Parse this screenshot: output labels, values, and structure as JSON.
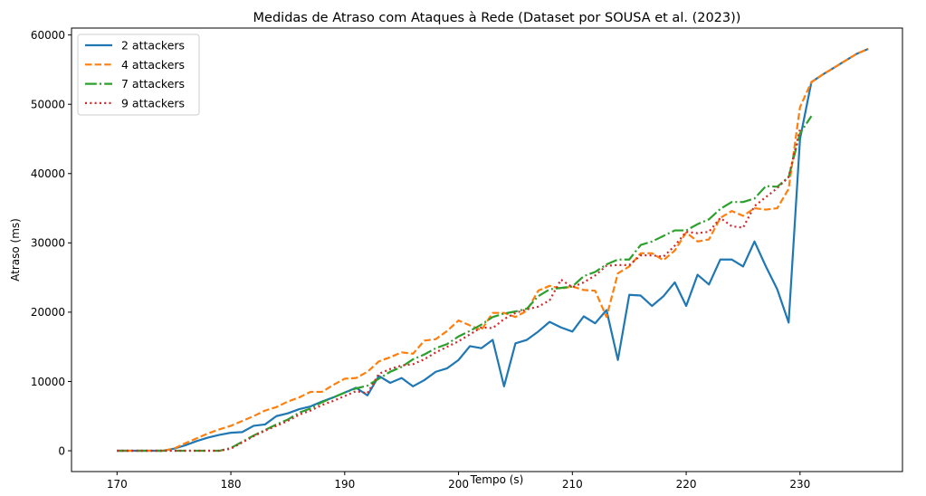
{
  "chart_data": {
    "type": "line",
    "title": "Medidas de Atraso com Ataques à Rede (Dataset por SOUSA et al. (2023))",
    "xlabel": "Tempo (s)",
    "ylabel": "Atraso (ms)",
    "xlim": [
      166,
      239
    ],
    "ylim": [
      -3000,
      61000
    ],
    "xticks": [
      170,
      180,
      190,
      200,
      210,
      220,
      230
    ],
    "yticks": [
      0,
      10000,
      20000,
      30000,
      40000,
      50000,
      60000
    ],
    "grid": false,
    "legend_position": "top-left",
    "series": [
      {
        "name": "2 attackers",
        "color": "#1f77b4",
        "dash": "solid",
        "x": [
          170,
          171,
          172,
          173,
          174,
          175,
          176,
          177,
          178,
          179,
          180,
          181,
          182,
          183,
          184,
          185,
          186,
          187,
          188,
          189,
          190,
          191,
          192,
          193,
          194,
          195,
          196,
          197,
          198,
          199,
          200,
          201,
          202,
          203,
          204,
          205,
          206,
          207,
          208,
          209,
          210,
          211,
          212,
          213,
          214,
          215,
          216,
          217,
          218,
          219,
          220,
          221,
          222,
          223,
          224,
          225,
          226,
          227,
          228,
          229,
          230,
          231,
          232,
          233,
          234,
          235,
          236
        ],
        "y": [
          0,
          0,
          0,
          0,
          0,
          300,
          800,
          1400,
          1900,
          2300,
          2600,
          2700,
          3600,
          3800,
          5000,
          5400,
          6000,
          6400,
          7100,
          7700,
          8400,
          9100,
          8000,
          10800,
          9800,
          10500,
          9300,
          10200,
          11400,
          11900,
          13100,
          15100,
          14800,
          16000,
          9300,
          15500,
          16000,
          17200,
          18600,
          17800,
          17200,
          19400,
          18400,
          20300,
          13100,
          22500,
          22400,
          20900,
          22300,
          24300,
          20900,
          25400,
          24000,
          27600,
          27600,
          26600,
          30200,
          26600,
          23300,
          18500,
          45000,
          53200,
          54300,
          55300,
          56300,
          57300,
          58000
        ]
      },
      {
        "name": "4 attackers",
        "color": "#ff7f0e",
        "dash": "dashed",
        "x": [
          170,
          171,
          172,
          173,
          174,
          175,
          176,
          177,
          178,
          179,
          180,
          181,
          182,
          183,
          184,
          185,
          186,
          187,
          188,
          189,
          190,
          191,
          192,
          193,
          194,
          195,
          196,
          197,
          198,
          199,
          200,
          201,
          202,
          203,
          204,
          205,
          206,
          207,
          208,
          209,
          210,
          211,
          212,
          213,
          214,
          215,
          216,
          217,
          218,
          219,
          220,
          221,
          222,
          223,
          224,
          225,
          226,
          227,
          228,
          229,
          230,
          231,
          232,
          233,
          234,
          235,
          236
        ],
        "y": [
          0,
          0,
          0,
          0,
          0,
          300,
          1100,
          1800,
          2500,
          3100,
          3600,
          4300,
          5000,
          5800,
          6300,
          7100,
          7700,
          8500,
          8500,
          9500,
          10400,
          10500,
          11400,
          12900,
          13500,
          14200,
          14000,
          15900,
          16100,
          17300,
          18800,
          18100,
          17400,
          19900,
          19900,
          19300,
          20200,
          23100,
          23800,
          23400,
          23700,
          23200,
          23100,
          19300,
          25600,
          26600,
          28500,
          28500,
          27500,
          28900,
          31500,
          30200,
          30500,
          33600,
          34600,
          33900,
          35000,
          34800,
          35000,
          37800,
          49600,
          53200,
          54300,
          55300,
          56300,
          57300,
          58000
        ]
      },
      {
        "name": "7 attackers",
        "color": "#2ca02c",
        "dash": "dashdot",
        "x": [
          170,
          171,
          172,
          173,
          174,
          175,
          176,
          177,
          178,
          179,
          180,
          181,
          182,
          183,
          184,
          185,
          186,
          187,
          188,
          189,
          190,
          191,
          192,
          193,
          194,
          195,
          196,
          197,
          198,
          199,
          200,
          201,
          202,
          203,
          204,
          205,
          206,
          207,
          208,
          209,
          210,
          211,
          212,
          213,
          214,
          215,
          216,
          217,
          218,
          219,
          220,
          221,
          222,
          223,
          224,
          225,
          226,
          227,
          228,
          229,
          230,
          231
        ],
        "y": [
          0,
          0,
          0,
          0,
          0,
          0,
          0,
          0,
          0,
          0,
          400,
          1300,
          2200,
          3000,
          3800,
          4500,
          5500,
          6100,
          7000,
          7700,
          8400,
          9000,
          9400,
          10400,
          11400,
          12100,
          13200,
          13900,
          14800,
          15400,
          16500,
          17300,
          18200,
          19300,
          19800,
          20100,
          20500,
          22300,
          23300,
          23500,
          23700,
          25200,
          25800,
          26900,
          27600,
          27600,
          29700,
          30200,
          31000,
          31800,
          31800,
          32700,
          33400,
          34900,
          35900,
          35900,
          36400,
          38200,
          38100,
          39500,
          45800,
          48300
        ]
      },
      {
        "name": "9 attackers",
        "color": "#d62728",
        "dash": "dotted",
        "x": [
          170,
          171,
          172,
          173,
          174,
          175,
          176,
          177,
          178,
          179,
          180,
          181,
          182,
          183,
          184,
          185,
          186,
          187,
          188,
          189,
          190,
          191,
          192,
          193,
          194,
          195,
          196,
          197,
          198,
          199,
          200,
          201,
          202,
          203,
          204,
          205,
          206,
          207,
          208,
          209,
          210,
          211,
          212,
          213,
          214,
          215,
          216,
          217,
          218,
          219,
          220,
          221,
          222,
          223,
          224,
          225,
          226,
          227,
          228,
          229,
          230
        ],
        "y": [
          0,
          0,
          0,
          0,
          0,
          0,
          0,
          0,
          0,
          0,
          300,
          1200,
          2100,
          2900,
          3600,
          4300,
          5200,
          5800,
          6600,
          7200,
          7900,
          8600,
          8300,
          11100,
          11800,
          12300,
          12500,
          13200,
          14200,
          15000,
          15800,
          16800,
          17800,
          17700,
          19000,
          19900,
          20400,
          20800,
          21700,
          24700,
          23600,
          24300,
          25300,
          26700,
          26800,
          26800,
          28200,
          28200,
          28000,
          29600,
          31600,
          31400,
          31600,
          33600,
          32400,
          32200,
          35300,
          36600,
          37900,
          39500,
          46400
        ]
      }
    ]
  }
}
